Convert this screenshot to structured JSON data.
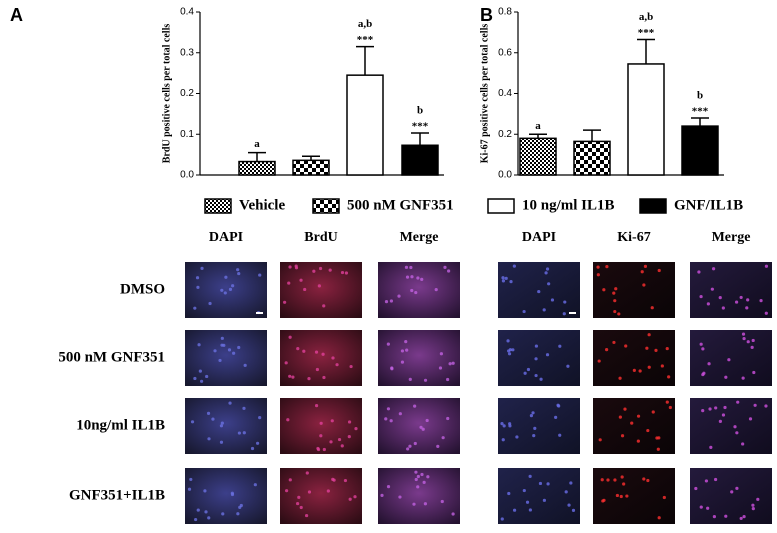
{
  "legend": [
    "Vehicle",
    "500 nM GNF351",
    "10 ng/ml IL1B",
    "GNF/IL1B"
  ],
  "chart_data": [
    {
      "type": "bar",
      "panel": "A",
      "ylabel": "BrdU positive cells per total cells",
      "values": [
        0.033,
        0.036,
        0.245,
        0.073
      ],
      "errors": [
        0.022,
        0.01,
        0.07,
        0.03
      ],
      "letters": [
        "a",
        null,
        "a,b",
        "b"
      ],
      "stars": [
        null,
        null,
        "***",
        "***"
      ],
      "ylim": [
        0,
        0.4
      ],
      "yticks": [
        {
          "value": 0,
          "label": "0.0"
        },
        0.1,
        0.2,
        0.3,
        0.4
      ]
    },
    {
      "type": "bar",
      "panel": "B",
      "ylabel": "Ki-67 positive cells per total cells",
      "values": [
        0.18,
        0.165,
        0.545,
        0.24
      ],
      "errors": [
        0.02,
        0.055,
        0.12,
        0.04
      ],
      "letters": [
        "a",
        null,
        "a,b",
        "b"
      ],
      "stars": [
        null,
        null,
        "***",
        "***"
      ],
      "ylim": [
        0,
        0.8
      ],
      "yticks": [
        {
          "value": 0,
          "label": "0.0"
        },
        0.2,
        0.4,
        0.6,
        0.8
      ]
    }
  ],
  "images": {
    "row_labels": [
      "DMSO",
      "500 nM GNF351",
      "10ng/ml IL1B",
      "GNF351+IL1B"
    ],
    "panel_a_columns": [
      "DAPI",
      "BrdU",
      "Merge"
    ],
    "panel_b_columns": [
      "DAPI",
      "Ki-67",
      "Merge"
    ]
  }
}
